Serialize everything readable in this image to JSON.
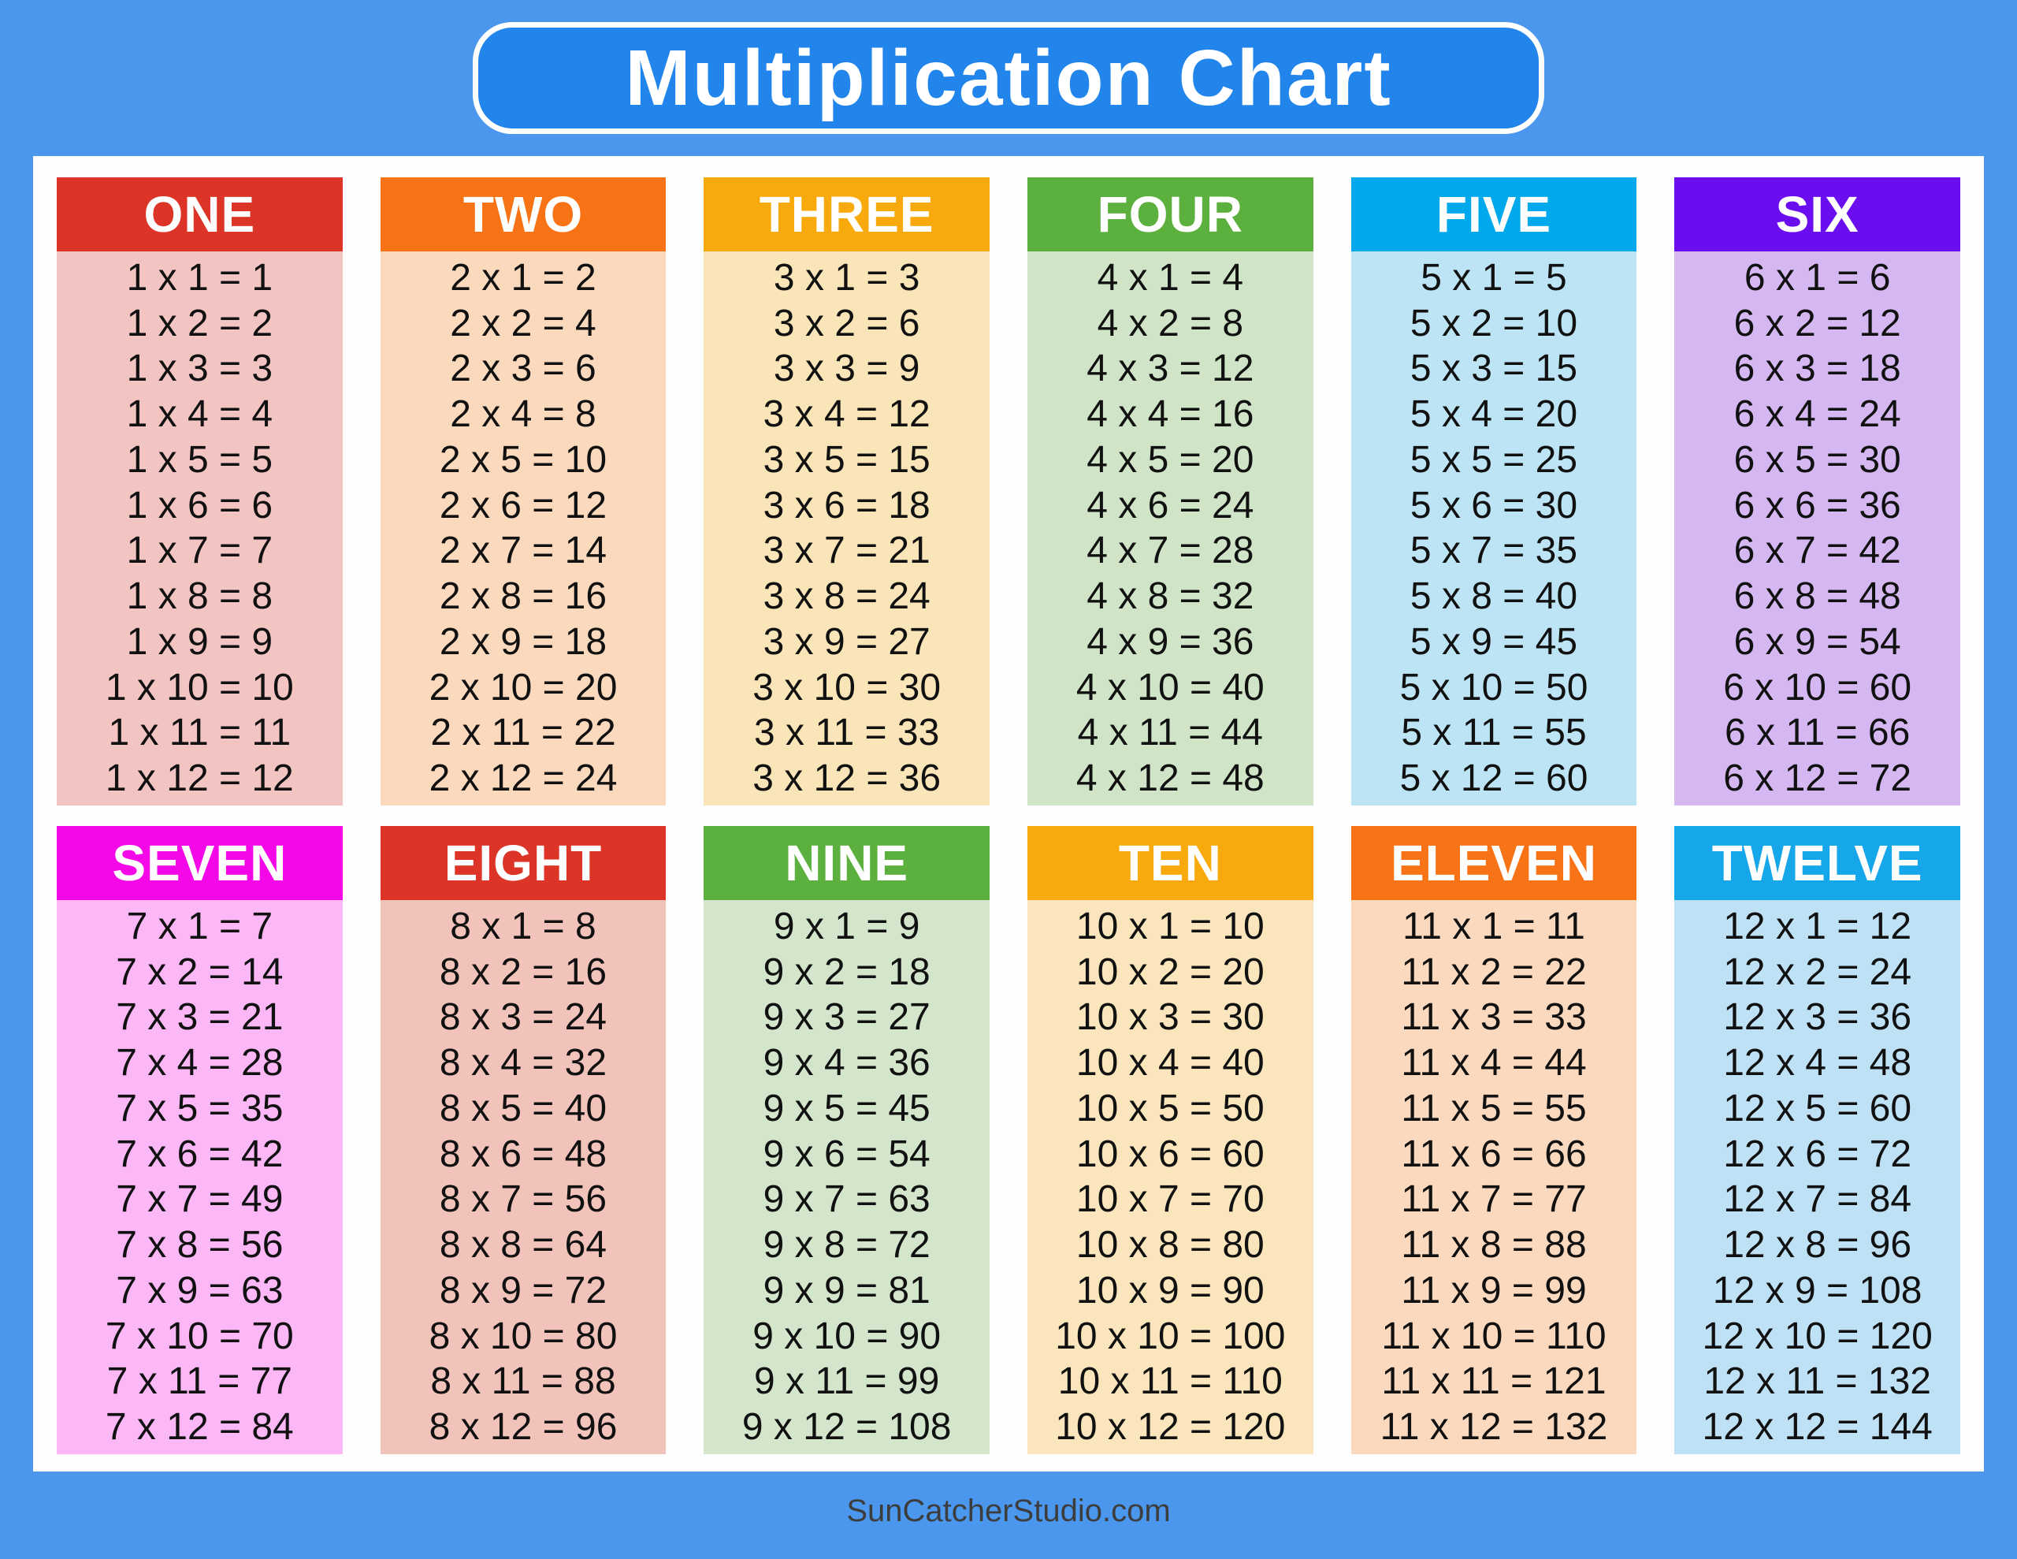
{
  "page": {
    "background_color": "#4A97ED",
    "panel_color": "#FDFDFD"
  },
  "title": {
    "text": "Multiplication Chart",
    "box_color": "#2285EC",
    "border_color": "#FFFFFF",
    "text_color": "#FFFFFF"
  },
  "footer": {
    "text": "SunCatcherStudio.com",
    "color": "#3D3D3D"
  },
  "tables": [
    {
      "label": "ONE",
      "header_color": "#DC3427",
      "body_color": "#F2C5C2",
      "facts": [
        "1 x 1 = 1",
        "1 x 2 = 2",
        "1 x 3 = 3",
        "1 x 4 = 4",
        "1 x 5 = 5",
        "1 x 6 = 6",
        "1 x 7 = 7",
        "1 x 8 = 8",
        "1 x 9 = 9",
        "1 x 10 = 10",
        "1 x 11 = 11",
        "1 x 12 = 12"
      ]
    },
    {
      "label": "TWO",
      "header_color": "#F87315",
      "body_color": "#FBD9BD",
      "facts": [
        "2 x 1 = 2",
        "2 x 2 = 4",
        "2 x 3 = 6",
        "2 x 4 = 8",
        "2 x 5 = 10",
        "2 x 6 = 12",
        "2 x 7 = 14",
        "2 x 8 = 16",
        "2 x 9 = 18",
        "2 x 10 = 20",
        "2 x 11 = 22",
        "2 x 12 = 24"
      ]
    },
    {
      "label": "THREE",
      "header_color": "#F8A90C",
      "body_color": "#FAE5B8",
      "facts": [
        "3 x 1 = 3",
        "3 x 2 = 6",
        "3 x 3 = 9",
        "3 x 4 = 12",
        "3 x 5 = 15",
        "3 x 6 = 18",
        "3 x 7 = 21",
        "3 x 8 = 24",
        "3 x 9 = 27",
        "3 x 10 = 30",
        "3 x 11 = 33",
        "3 x 12 = 36"
      ]
    },
    {
      "label": "FOUR",
      "header_color": "#5CB13E",
      "body_color": "#D0E5C8",
      "facts": [
        "4 x 1 = 4",
        "4 x 2 = 8",
        "4 x 3 = 12",
        "4 x 4 = 16",
        "4 x 5 = 20",
        "4 x 6 = 24",
        "4 x 7 = 28",
        "4 x 8 = 32",
        "4 x 9 = 36",
        "4 x 10 = 40",
        "4 x 11 = 44",
        "4 x 12 = 48"
      ]
    },
    {
      "label": "FIVE",
      "header_color": "#00A9EC",
      "body_color": "#BDE4F4",
      "facts": [
        "5 x 1 = 5",
        "5 x 2 = 10",
        "5 x 3 = 15",
        "5 x 4 = 20",
        "5 x 5 = 25",
        "5 x 6 = 30",
        "5 x 7 = 35",
        "5 x 8 = 40",
        "5 x 9 = 45",
        "5 x 10 = 50",
        "5 x 11 = 55",
        "5 x 12 = 60"
      ]
    },
    {
      "label": "SIX",
      "header_color": "#6B0EEF",
      "body_color": "#D5B8F2",
      "facts": [
        "6 x 1 = 6",
        "6 x 2 = 12",
        "6 x 3 = 18",
        "6 x 4 = 24",
        "6 x 5 = 30",
        "6 x 6 = 36",
        "6 x 7 = 42",
        "6 x 8 = 48",
        "6 x 9 = 54",
        "6 x 10 = 60",
        "6 x 11 = 66",
        "6 x 12 = 72"
      ]
    },
    {
      "label": "SEVEN",
      "header_color": "#F408E8",
      "body_color": "#FBB7F6",
      "facts": [
        "7 x 1 = 7",
        "7 x 2 = 14",
        "7 x 3 = 21",
        "7 x 4 = 28",
        "7 x 5 = 35",
        "7 x 6 = 42",
        "7 x 7 = 49",
        "7 x 8 = 56",
        "7 x 9 = 63",
        "7 x 10 = 70",
        "7 x 11 = 77",
        "7 x 12 = 84"
      ]
    },
    {
      "label": "EIGHT",
      "header_color": "#DC3427",
      "body_color": "#F1C3BB",
      "facts": [
        "8 x 1 = 8",
        "8 x 2 = 16",
        "8 x 3 = 24",
        "8 x 4 = 32",
        "8 x 5 = 40",
        "8 x 6 = 48",
        "8 x 7 = 56",
        "8 x 8 = 64",
        "8 x 9 = 72",
        "8 x 10 = 80",
        "8 x 11 = 88",
        "8 x 12 = 96"
      ]
    },
    {
      "label": "NINE",
      "header_color": "#5CB13E",
      "body_color": "#D3E6CB",
      "facts": [
        "9 x 1 = 9",
        "9 x 2 = 18",
        "9 x 3 = 27",
        "9 x 4 = 36",
        "9 x 5 = 45",
        "9 x 6 = 54",
        "9 x 7 = 63",
        "9 x 8 = 72",
        "9 x 9 = 81",
        "9 x 10 = 90",
        "9 x 11 = 99",
        "9 x 12 = 108"
      ]
    },
    {
      "label": "TEN",
      "header_color": "#F8A90C",
      "body_color": "#FAE5BC",
      "facts": [
        "10 x 1 = 10",
        "10 x 2 = 20",
        "10 x 3 = 30",
        "10 x 4 = 40",
        "10 x 5 = 50",
        "10 x 6 = 60",
        "10 x 7 = 70",
        "10 x 8 = 80",
        "10 x 9 = 90",
        "10 x 10 = 100",
        "10 x 11 = 110",
        "10 x 12 = 120"
      ]
    },
    {
      "label": "ELEVEN",
      "header_color": "#F87315",
      "body_color": "#FBD9BE",
      "facts": [
        "11 x 1 = 11",
        "11 x 2 = 22",
        "11 x 3 = 33",
        "11 x 4 = 44",
        "11 x 5 = 55",
        "11 x 6 = 66",
        "11 x 7 = 77",
        "11 x 8 = 88",
        "11 x 9 = 99",
        "11 x 10 = 110",
        "11 x 11 = 121",
        "11 x 12 = 132"
      ]
    },
    {
      "label": "TWELVE",
      "header_color": "#16A7EA",
      "body_color": "#BFE1F5",
      "facts": [
        "12 x 1 = 12",
        "12 x 2 = 24",
        "12 x 3 = 36",
        "12 x 4 = 48",
        "12 x 5 = 60",
        "12 x 6 = 72",
        "12 x 7 = 84",
        "12 x 8 = 96",
        "12 x 9 = 108",
        "12 x 10 = 120",
        "12 x 11 = 132",
        "12 x 12 = 144"
      ]
    }
  ]
}
